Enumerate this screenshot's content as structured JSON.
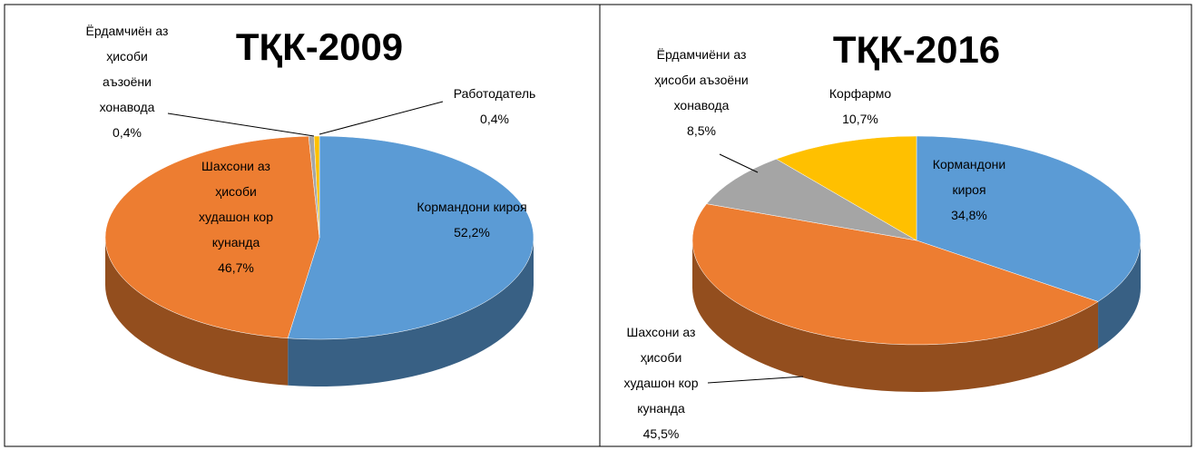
{
  "chart_data": [
    {
      "type": "pie",
      "title": "ТҚК-2009",
      "categories": [
        "Кормандони кироя",
        "Шахсони аз ҳисоби худашон кор кунанда",
        "Ёрдамчиён аз ҳисоби аъзоёни хонавода",
        "Работодатель"
      ],
      "values": [
        52.2,
        46.7,
        0.4,
        0.4
      ],
      "value_labels": [
        "52,2%",
        "46,7%",
        "0,4%",
        "0,4%"
      ],
      "colors": [
        "#5b9bd5",
        "#ed7d31",
        "#a5a5a5",
        "#ffc000"
      ]
    },
    {
      "type": "pie",
      "title": "ТҚК-2016",
      "categories": [
        "Кормандони кироя",
        "Шахсони аз ҳисоби худашон кор кунанда",
        "Ёрдамчиёни аз ҳисоби аъзоёни хонавода",
        "Корфармо"
      ],
      "values": [
        34.8,
        45.5,
        8.5,
        10.7
      ],
      "value_labels": [
        "34,8%",
        "45,5%",
        "8,5%",
        "10,7%"
      ],
      "colors": [
        "#5b9bd5",
        "#ed7d31",
        "#a5a5a5",
        "#ffc000"
      ]
    }
  ]
}
